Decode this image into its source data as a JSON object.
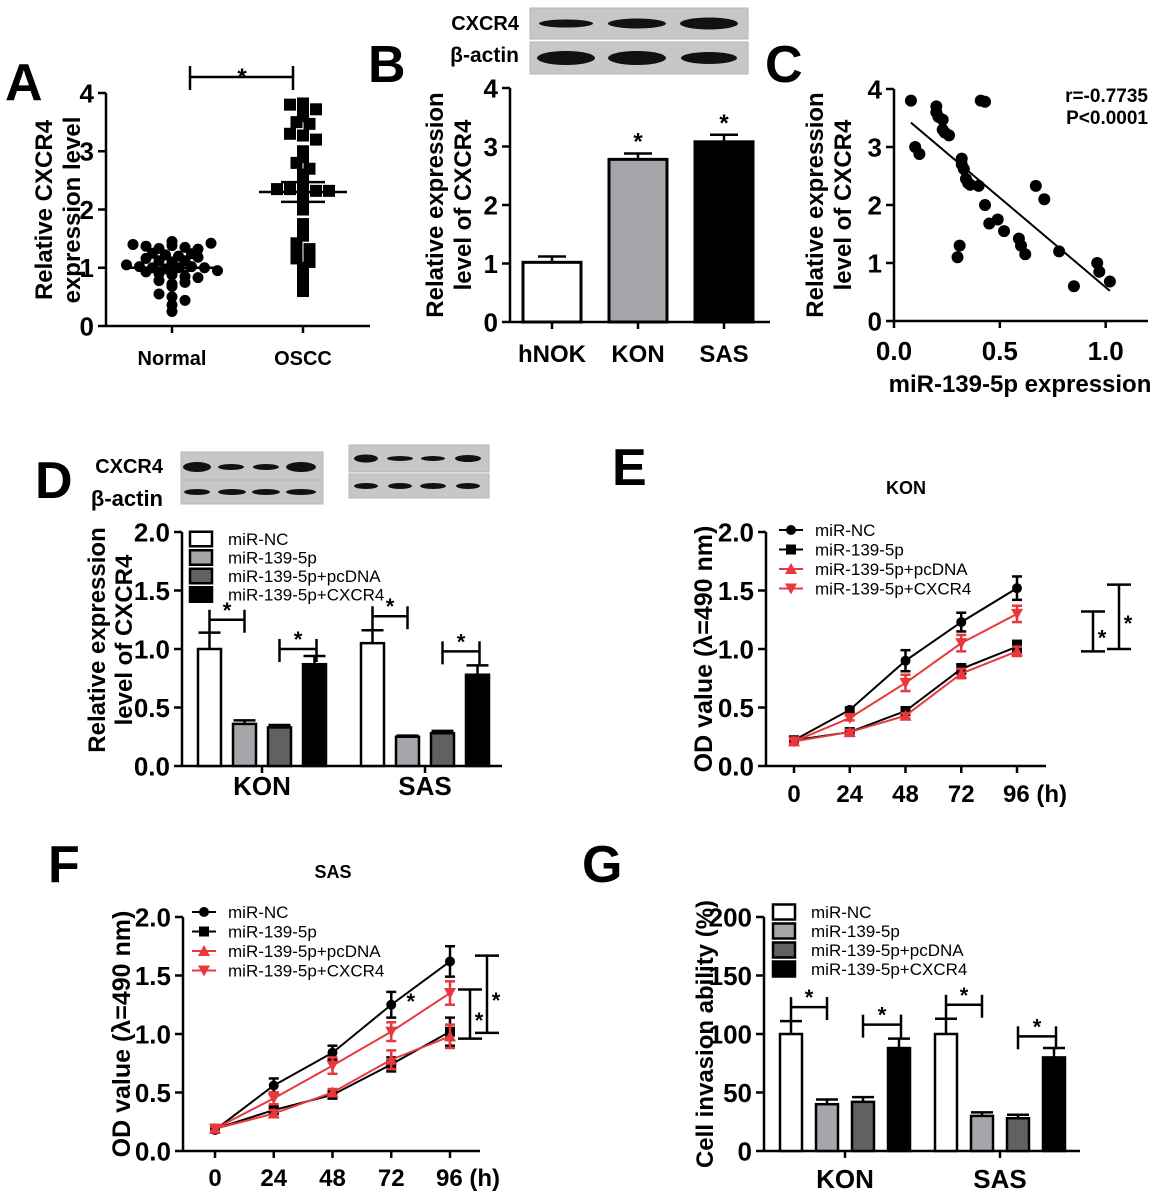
{
  "colors": {
    "white": "#ffffff",
    "light_gray": "#a6a6aa",
    "dark_gray": "#616161",
    "black": "#000000",
    "red": "#e8383d",
    "blot_bg": "#c8c8c8"
  },
  "chart_data": [
    {
      "panel": "A",
      "type": "scatter",
      "ylabel": "Relative CXCR4 expression level",
      "categories": [
        "Normal",
        "OSCC"
      ],
      "ylim": [
        0,
        4
      ],
      "yticks": [
        "0",
        "1",
        "2",
        "3",
        "4"
      ],
      "significance": [
        {
          "from": "Normal",
          "to": "OSCC",
          "label": "*"
        }
      ],
      "groups": [
        {
          "name": "Normal",
          "marker": "circle",
          "mean": 1.0,
          "sem": 0.05,
          "values": [
            1.45,
            1.4,
            1.37,
            1.33,
            1.38,
            1.35,
            1.32,
            1.42,
            1.25,
            1.22,
            1.16,
            1.12,
            1.1,
            1.12,
            1.18,
            1.2,
            1.24,
            1.05,
            1.02,
            1.0,
            0.98,
            1.0,
            1.02,
            1.0,
            0.95,
            0.93,
            0.9,
            0.88,
            0.85,
            0.83,
            0.78,
            0.72,
            0.75,
            0.68,
            0.55,
            0.5,
            0.44,
            0.36,
            0.25
          ]
        },
        {
          "name": "OSCC",
          "marker": "square",
          "mean": 2.3,
          "sem": 0.17,
          "values": [
            3.82,
            3.8,
            3.8,
            3.72,
            3.6,
            3.5,
            3.47,
            3.3,
            3.27,
            3.2,
            3.0,
            2.9,
            2.8,
            2.7,
            2.6,
            2.47,
            2.35,
            2.35,
            2.33,
            2.32,
            2.32,
            2.2,
            2.1,
            2.0,
            1.75,
            1.65,
            1.55,
            1.42,
            1.32,
            1.3,
            1.2,
            1.16,
            1.1,
            1.0,
            0.87,
            0.7,
            0.6
          ]
        }
      ]
    },
    {
      "panel": "B",
      "type": "bar",
      "ylabel": "Relative expression level of CXCR4",
      "categories": [
        "hNOK",
        "KON",
        "SAS"
      ],
      "values": [
        1.02,
        2.78,
        3.08
      ],
      "errors": [
        0.1,
        0.1,
        0.12
      ],
      "significance": [
        "",
        "*",
        "*"
      ],
      "ylim": [
        0,
        4
      ],
      "yticks": [
        "0",
        "1",
        "2",
        "3",
        "4"
      ],
      "blot": {
        "rows": [
          "CXCR4",
          "β-actin"
        ],
        "lanes": 3
      }
    },
    {
      "panel": "C",
      "type": "scatter",
      "xlabel": "miR-139-5p expression",
      "ylabel": "Relative expression level of CXCR4",
      "xlim": [
        0,
        1.2
      ],
      "xticks": [
        "0.0",
        "0.5",
        "1.0"
      ],
      "ylim": [
        0,
        4
      ],
      "yticks": [
        "0",
        "1",
        "2",
        "3",
        "4"
      ],
      "annotation": {
        "r": "r=-0.7735",
        "p": "P<0.0001"
      },
      "fit_line": {
        "x": [
          0.08,
          1.02
        ],
        "y": [
          3.42,
          0.52
        ]
      },
      "points": [
        [
          0.08,
          3.8
        ],
        [
          0.1,
          3.0
        ],
        [
          0.12,
          2.88
        ],
        [
          0.2,
          3.7
        ],
        [
          0.2,
          3.6
        ],
        [
          0.21,
          3.52
        ],
        [
          0.23,
          3.47
        ],
        [
          0.23,
          3.3
        ],
        [
          0.24,
          3.25
        ],
        [
          0.26,
          3.2
        ],
        [
          0.32,
          2.8
        ],
        [
          0.32,
          2.7
        ],
        [
          0.33,
          2.62
        ],
        [
          0.34,
          2.45
        ],
        [
          0.35,
          2.38
        ],
        [
          0.36,
          2.35
        ],
        [
          0.4,
          2.33
        ],
        [
          0.41,
          3.8
        ],
        [
          0.43,
          3.78
        ],
        [
          0.43,
          2.0
        ],
        [
          0.45,
          1.68
        ],
        [
          0.49,
          1.75
        ],
        [
          0.52,
          1.55
        ],
        [
          0.3,
          1.1
        ],
        [
          0.31,
          1.3
        ],
        [
          0.59,
          1.42
        ],
        [
          0.6,
          1.3
        ],
        [
          0.62,
          1.15
        ],
        [
          0.67,
          2.33
        ],
        [
          0.71,
          2.1
        ],
        [
          0.78,
          1.2
        ],
        [
          0.85,
          0.6
        ],
        [
          0.96,
          1.0
        ],
        [
          0.97,
          0.85
        ],
        [
          1.02,
          0.68
        ]
      ]
    },
    {
      "panel": "D",
      "type": "bar",
      "ylabel": "Relative expression level of CXCR4",
      "categories": [
        "KON",
        "SAS"
      ],
      "ylim": [
        0,
        2
      ],
      "yticks": [
        "0.0",
        "0.5",
        "1.0",
        "1.5",
        "2.0"
      ],
      "series": [
        {
          "name": "miR-NC",
          "fill": "white",
          "values": [
            1.0,
            1.05
          ],
          "errors": [
            0.14,
            0.11
          ]
        },
        {
          "name": "miR-139-5p",
          "fill": "light_gray",
          "values": [
            0.36,
            0.25
          ],
          "errors": [
            0.03,
            0.01
          ]
        },
        {
          "name": "miR-139-5p+pcDNA",
          "fill": "dark_gray",
          "values": [
            0.33,
            0.28
          ],
          "errors": [
            0.02,
            0.02
          ]
        },
        {
          "name": "miR-139-5p+CXCR4",
          "fill": "black",
          "values": [
            0.87,
            0.78
          ],
          "errors": [
            0.07,
            0.08
          ]
        }
      ],
      "significance": [
        {
          "group": 0,
          "pair": [
            0,
            1
          ],
          "label": "*",
          "level": 1.25
        },
        {
          "group": 0,
          "pair": [
            2,
            3
          ],
          "label": "*",
          "level": 1.0
        },
        {
          "group": 1,
          "pair": [
            0,
            1
          ],
          "label": "*",
          "level": 1.28
        },
        {
          "group": 1,
          "pair": [
            2,
            3
          ],
          "label": "*",
          "level": 0.98
        }
      ],
      "blot": {
        "rows": [
          "CXCR4",
          "β-actin"
        ],
        "lanes_per_blot": 4,
        "blots": 2
      }
    },
    {
      "panel": "E",
      "type": "line",
      "title": "KON",
      "ylabel": "OD value (λ=490 nm)",
      "x": [
        0,
        24,
        48,
        72,
        96
      ],
      "xticks": [
        "0",
        "24",
        "48",
        "72",
        "96 (h)"
      ],
      "ylim": [
        0,
        2
      ],
      "yticks": [
        "0.0",
        "0.5",
        "1.0",
        "1.5",
        "2.0"
      ],
      "series": [
        {
          "name": "miR-NC",
          "color": "black",
          "marker": "circle",
          "values": [
            0.22,
            0.48,
            0.9,
            1.23,
            1.52
          ],
          "errors": [
            0.02,
            0.02,
            0.09,
            0.08,
            0.1
          ]
        },
        {
          "name": "miR-139-5p",
          "color": "black",
          "marker": "square",
          "values": [
            0.22,
            0.29,
            0.47,
            0.83,
            1.02
          ],
          "errors": [
            0.02,
            0.02,
            0.03,
            0.04,
            0.05
          ]
        },
        {
          "name": "miR-139-5p+pcDNA",
          "color": "red",
          "marker": "triangle-up",
          "values": [
            0.21,
            0.29,
            0.43,
            0.79,
            0.98
          ],
          "errors": [
            0.02,
            0.02,
            0.02,
            0.04,
            0.04
          ]
        },
        {
          "name": "miR-139-5p+CXCR4",
          "color": "red",
          "marker": "triangle-down",
          "values": [
            0.21,
            0.41,
            0.71,
            1.05,
            1.3
          ],
          "errors": [
            0.02,
            0.02,
            0.07,
            0.07,
            0.07
          ]
        }
      ],
      "significance": [
        {
          "range": [
            0.98,
            1.32
          ],
          "label": "*"
        },
        {
          "range": [
            1.0,
            1.55
          ],
          "label": "*"
        }
      ]
    },
    {
      "panel": "F",
      "type": "line",
      "title": "SAS",
      "ylabel": "OD value (λ=490 nm)",
      "x": [
        0,
        24,
        48,
        72,
        96
      ],
      "xticks": [
        "0",
        "24",
        "48",
        "72",
        "96 (h)"
      ],
      "ylim": [
        0,
        2
      ],
      "yticks": [
        "0.0",
        "0.5",
        "1.0",
        "1.5",
        "2.0"
      ],
      "series": [
        {
          "name": "miR-NC",
          "color": "black",
          "marker": "circle",
          "values": [
            0.18,
            0.56,
            0.84,
            1.25,
            1.62
          ],
          "errors": [
            0.02,
            0.06,
            0.06,
            0.11,
            0.13
          ]
        },
        {
          "name": "miR-139-5p",
          "color": "black",
          "marker": "square",
          "values": [
            0.19,
            0.35,
            0.48,
            0.74,
            1.02
          ],
          "errors": [
            0.02,
            0.03,
            0.03,
            0.06,
            0.12
          ]
        },
        {
          "name": "miR-139-5p+pcDNA",
          "color": "red",
          "marker": "triangle-up",
          "values": [
            0.19,
            0.32,
            0.5,
            0.78,
            0.98
          ],
          "errors": [
            0.02,
            0.03,
            0.03,
            0.08,
            0.1
          ]
        },
        {
          "name": "miR-139-5p+CXCR4",
          "color": "red",
          "marker": "triangle-down",
          "values": [
            0.19,
            0.45,
            0.73,
            1.02,
            1.35
          ],
          "errors": [
            0.02,
            0.05,
            0.07,
            0.08,
            0.1
          ]
        }
      ],
      "significance": [
        {
          "range": [
            0.96,
            1.38
          ],
          "label": "*"
        },
        {
          "range": [
            1.01,
            1.67
          ],
          "label": "*"
        },
        {
          "at": [
            80,
            1.25
          ],
          "label": "*"
        }
      ]
    },
    {
      "panel": "G",
      "type": "bar",
      "ylabel": "Cell invasion ability (%)",
      "categories": [
        "KON",
        "SAS"
      ],
      "ylim": [
        0,
        200
      ],
      "yticks": [
        "0",
        "50",
        "100",
        "150",
        "200"
      ],
      "series": [
        {
          "name": "miR-NC",
          "fill": "white",
          "values": [
            100,
            100
          ],
          "errors": [
            11,
            13
          ]
        },
        {
          "name": "miR-139-5p",
          "fill": "light_gray",
          "values": [
            40,
            30
          ],
          "errors": [
            4,
            3
          ]
        },
        {
          "name": "miR-139-5p+pcDNA",
          "fill": "dark_gray",
          "values": [
            42,
            28
          ],
          "errors": [
            4,
            3
          ]
        },
        {
          "name": "miR-139-5p+CXCR4",
          "fill": "black",
          "values": [
            88,
            80
          ],
          "errors": [
            8,
            8
          ]
        }
      ],
      "significance": [
        {
          "group": 0,
          "pair": [
            0,
            1
          ],
          "label": "*",
          "level": 123
        },
        {
          "group": 0,
          "pair": [
            2,
            3
          ],
          "label": "*",
          "level": 108
        },
        {
          "group": 1,
          "pair": [
            0,
            1
          ],
          "label": "*",
          "level": 125
        },
        {
          "group": 1,
          "pair": [
            2,
            3
          ],
          "label": "*",
          "level": 98
        }
      ]
    }
  ]
}
